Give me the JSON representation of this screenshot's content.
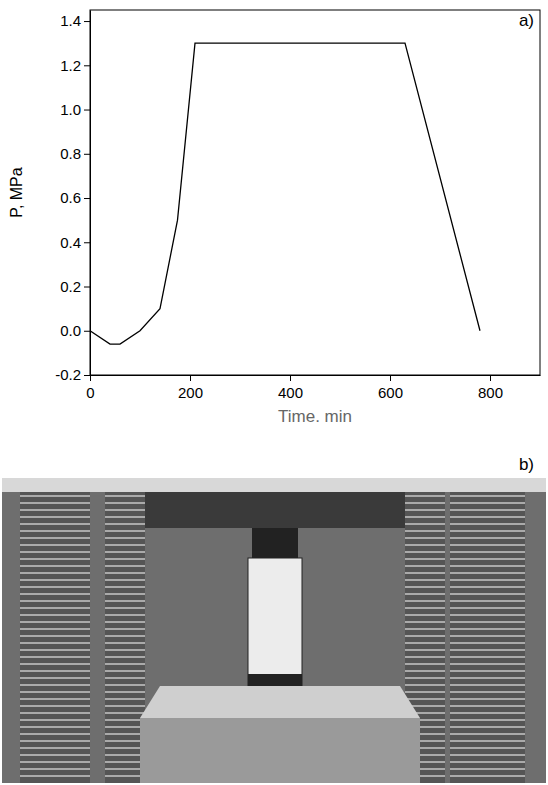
{
  "chart_data": {
    "type": "line",
    "x_label": "Time. min",
    "y_label": "P, MPa",
    "annotations": [
      "a)",
      "b)"
    ],
    "x": [
      0,
      40,
      60,
      100,
      140,
      175,
      210,
      630,
      780
    ],
    "values": [
      0,
      -0.06,
      -0.06,
      0,
      0.1,
      0.5,
      1.3,
      1.3,
      0
    ],
    "color": "#000000",
    "xlim": [
      0,
      900
    ],
    "ylim": [
      -0.2,
      1.45
    ],
    "xticks": [
      0,
      200,
      400,
      600,
      800
    ],
    "yticks": [
      -0.2,
      {
        "value": 0,
        "label": "0.0"
      },
      0.2,
      0.4,
      0.6,
      0.8,
      {
        "value": 1,
        "label": "1.0"
      },
      1.2,
      1.4
    ],
    "grid": false
  }
}
